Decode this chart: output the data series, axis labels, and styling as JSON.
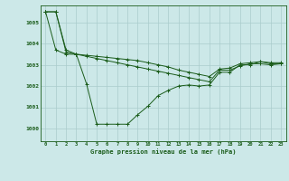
{
  "background_color": "#cce8e8",
  "grid_color": "#aacccc",
  "line_color": "#1a5c1a",
  "x_labels": [
    "0",
    "1",
    "2",
    "3",
    "4",
    "5",
    "6",
    "7",
    "8",
    "9",
    "10",
    "11",
    "12",
    "13",
    "14",
    "15",
    "16",
    "17",
    "18",
    "19",
    "20",
    "21",
    "22",
    "23"
  ],
  "ylim": [
    999.4,
    1005.8
  ],
  "yticks": [
    1000,
    1001,
    1002,
    1003,
    1004,
    1005
  ],
  "xlabel": "Graphe pression niveau de la mer (hPa)",
  "series1": [
    1005.5,
    1005.5,
    1003.7,
    1003.5,
    1003.45,
    1003.4,
    1003.35,
    1003.3,
    1003.25,
    1003.2,
    1003.1,
    1003.0,
    1002.9,
    1002.75,
    1002.65,
    1002.55,
    1002.45,
    1002.8,
    1002.85,
    1003.05,
    1003.1,
    1003.15,
    1003.1,
    1003.1
  ],
  "series2": [
    1005.5,
    1005.5,
    1003.6,
    1003.5,
    1003.4,
    1003.3,
    1003.2,
    1003.1,
    1003.0,
    1002.9,
    1002.8,
    1002.7,
    1002.6,
    1002.5,
    1002.4,
    1002.3,
    1002.2,
    1002.75,
    1002.75,
    1002.95,
    1003.05,
    1003.05,
    1003.0,
    1003.05
  ],
  "series3": [
    1005.5,
    1003.7,
    1003.5,
    1003.5,
    1002.1,
    1000.2,
    1000.2,
    1000.2,
    1000.2,
    1000.65,
    1001.05,
    1001.55,
    1001.8,
    1002.0,
    1002.05,
    1002.0,
    1002.05,
    1002.65,
    1002.65,
    1003.0,
    1003.0,
    1003.15,
    1003.05,
    1003.05
  ]
}
